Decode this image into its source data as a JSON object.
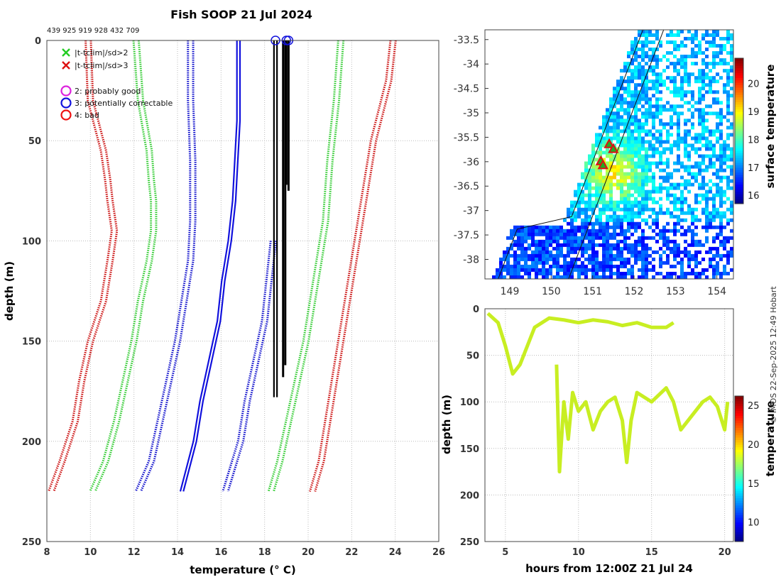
{
  "page": {
    "title": "Fish SOOP 21 Jul 2024",
    "ids": "439 925 919 928 432 709",
    "credit": "© IMOS 22-Sep-2025 12:49 Hobart"
  },
  "chart_data": [
    {
      "type": "line",
      "name": "profile-plot",
      "xlabel": "temperature (° C)",
      "ylabel": "depth (m)",
      "xlim": [
        8,
        26
      ],
      "ylim": [
        250,
        0
      ],
      "xticks": [
        8,
        10,
        12,
        14,
        16,
        18,
        20,
        22,
        24,
        26
      ],
      "yticks": [
        0,
        50,
        100,
        150,
        200,
        250
      ],
      "grid": true,
      "legend": {
        "placement": "top-left",
        "entries": [
          {
            "label": "|t-tclim|/sd>2",
            "marker": "x",
            "color": "#22cc22"
          },
          {
            "label": "|t-tclim|/sd>3",
            "marker": "x",
            "color": "#dd1111"
          },
          {
            "label": "2: probably good",
            "marker": "o",
            "color": "#dd22dd"
          },
          {
            "label": "3: potentially correctable",
            "marker": "o",
            "color": "#1111dd"
          },
          {
            "label": "4: bad",
            "marker": "o",
            "color": "#ee1111"
          }
        ]
      },
      "series": [
        {
          "name": "clim-3sd-low",
          "style": "dotted",
          "color": "#cc1111",
          "depth": [
            0,
            30,
            55,
            70,
            80,
            95,
            110,
            130,
            150,
            170,
            190,
            210,
            225
          ],
          "temperature": [
            9.9,
            10.0,
            10.6,
            10.8,
            10.9,
            11.1,
            10.9,
            10.6,
            10.0,
            9.6,
            9.3,
            8.7,
            8.2
          ]
        },
        {
          "name": "clim-2sd-low",
          "style": "dotted",
          "color": "#33cc33",
          "depth": [
            0,
            30,
            55,
            70,
            80,
            95,
            110,
            130,
            150,
            170,
            190,
            210,
            225
          ],
          "temperature": [
            12.1,
            12.3,
            12.7,
            12.8,
            12.9,
            12.9,
            12.7,
            12.3,
            12.0,
            11.6,
            11.2,
            10.7,
            10.1
          ]
        },
        {
          "name": "clim-mean-low",
          "style": "dotted",
          "color": "#1111cc",
          "depth": [
            0,
            30,
            60,
            90,
            110,
            130,
            150,
            170,
            190,
            210,
            225
          ],
          "temperature": [
            14.6,
            14.6,
            14.7,
            14.7,
            14.6,
            14.3,
            14.0,
            13.6,
            13.2,
            12.8,
            12.2
          ]
        },
        {
          "name": "clim-mean",
          "style": "solid",
          "color": "#1111dd",
          "depth": [
            0,
            40,
            80,
            100,
            120,
            140,
            160,
            180,
            200,
            225
          ],
          "temperature": [
            16.8,
            16.8,
            16.6,
            16.4,
            16.1,
            15.9,
            15.5,
            15.1,
            14.8,
            14.2
          ]
        },
        {
          "name": "clim-mean-high",
          "style": "dotted",
          "color": "#1111cc",
          "depth": [
            100,
            120,
            140,
            160,
            180,
            200,
            225
          ],
          "temperature": [
            18.4,
            18.2,
            18.0,
            17.6,
            17.2,
            16.9,
            16.2
          ]
        },
        {
          "name": "clim-2sd-high",
          "style": "dotted",
          "color": "#33cc33",
          "depth": [
            0,
            30,
            60,
            90,
            110,
            130,
            150,
            170,
            190,
            210,
            225
          ],
          "temperature": [
            21.5,
            21.3,
            21.0,
            20.8,
            20.5,
            20.2,
            19.9,
            19.5,
            19.1,
            18.7,
            18.3
          ]
        },
        {
          "name": "clim-3sd-high",
          "style": "dotted",
          "color": "#cc1111",
          "depth": [
            0,
            20,
            50,
            70,
            90,
            110,
            130,
            150,
            170,
            190,
            210,
            225
          ],
          "temperature": [
            23.9,
            23.7,
            23.0,
            22.7,
            22.4,
            22.1,
            21.8,
            21.5,
            21.2,
            20.9,
            20.6,
            20.2
          ]
        },
        {
          "name": "xbt-profiles",
          "style": "solid",
          "color": "#000000",
          "depth": [
            0,
            50,
            100,
            150,
            178
          ],
          "temperature": [
            18.5,
            18.5,
            18.5,
            18.5,
            18.5
          ]
        }
      ],
      "flag_markers": [
        {
          "temperature": 18.5,
          "depth": 0,
          "flag": 3
        },
        {
          "temperature": 19.0,
          "depth": 0,
          "flag": 3
        },
        {
          "temperature": 19.1,
          "depth": 0,
          "flag": 3
        }
      ]
    },
    {
      "type": "heatmap",
      "name": "sst-map",
      "xlim": [
        148.4,
        154.4
      ],
      "ylim": [
        -38.4,
        -33.3
      ],
      "xticks": [
        149,
        150,
        151,
        152,
        153,
        154
      ],
      "yticks": [
        -33.5,
        -34,
        -34.5,
        -35,
        -35.5,
        -36,
        -36.5,
        -37,
        -37.5,
        -38
      ],
      "colorbar": {
        "label": "surface temperature",
        "ticks": [
          16,
          17,
          18,
          19,
          20
        ],
        "range": [
          15.7,
          20.9
        ]
      },
      "markers": [
        {
          "lon": 151.4,
          "lat": -35.65
        },
        {
          "lon": 151.5,
          "lat": -35.75
        },
        {
          "lon": 151.2,
          "lat": -36.0
        },
        {
          "lon": 151.25,
          "lat": -36.08
        }
      ]
    },
    {
      "type": "scatter",
      "name": "depth-time",
      "xlabel": "hours from 12:00Z 21 Jul 24",
      "ylabel": "depth (m)",
      "xlim": [
        3.6,
        20.6
      ],
      "ylim": [
        250,
        0
      ],
      "xticks": [
        5,
        10,
        15,
        20
      ],
      "yticks": [
        0,
        50,
        100,
        150,
        200,
        250
      ],
      "colorbar": {
        "label": "temperature",
        "ticks": [
          10,
          15,
          20,
          25
        ],
        "range": [
          7.5,
          26.2
        ]
      },
      "series": [
        {
          "name": "shallow-track",
          "hours": [
            3.8,
            4.5,
            5.0,
            5.5,
            6.0,
            6.5,
            7.0,
            8.0,
            9.0,
            10.0,
            11.0,
            12.0,
            13.0,
            14.0,
            15.0,
            16.0,
            16.5
          ],
          "depth": [
            5,
            15,
            40,
            70,
            60,
            40,
            20,
            10,
            12,
            15,
            12,
            14,
            18,
            15,
            20,
            20,
            15
          ]
        },
        {
          "name": "deep-track",
          "hours": [
            8.5,
            8.7,
            9.0,
            9.3,
            9.6,
            10.0,
            10.5,
            11.0,
            11.5,
            12.0,
            12.5,
            13.0,
            13.3,
            13.6,
            14.0,
            15.0,
            16.0,
            16.5,
            17.0,
            17.5,
            18.0,
            18.5,
            19.0,
            19.5,
            20.0,
            20.2
          ],
          "depth": [
            60,
            175,
            100,
            140,
            90,
            110,
            100,
            130,
            110,
            100,
            95,
            120,
            165,
            120,
            90,
            100,
            85,
            100,
            130,
            120,
            110,
            100,
            95,
            105,
            130,
            100
          ]
        }
      ]
    }
  ]
}
